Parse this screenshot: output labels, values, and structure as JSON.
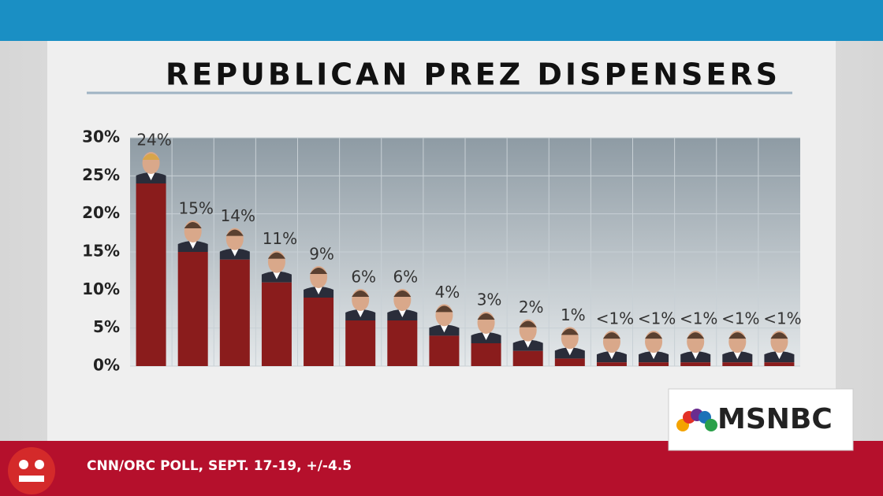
{
  "chart_data": {
    "type": "bar",
    "title": "REPUBLICAN PREZ DISPENSERS",
    "source": "CNN/ORC POLL, SEPT. 17-19, +/-4.5",
    "logo": "MSNBC",
    "values": [
      24,
      15,
      14,
      11,
      9,
      6,
      6,
      4,
      3,
      2,
      1,
      0.5,
      0.5,
      0.5,
      0.5,
      0.5
    ],
    "value_labels": [
      "24%",
      "15%",
      "14%",
      "11%",
      "9%",
      "6%",
      "6%",
      "4%",
      "3%",
      "2%",
      "1%",
      "<1%",
      "<1%",
      "<1%",
      "<1%",
      "<1%"
    ],
    "color": "#8a1c1c",
    "ylim": [
      0,
      30
    ],
    "yticks": [
      {
        "value": 0,
        "label": "0%"
      },
      {
        "value": 5,
        "label": "5%"
      },
      {
        "value": 10,
        "label": "10%"
      },
      {
        "value": 15,
        "label": "15%"
      },
      {
        "value": 20,
        "label": "20%"
      },
      {
        "value": 25,
        "label": "25%"
      },
      {
        "value": 30,
        "label": "30%"
      }
    ],
    "grid": true
  }
}
